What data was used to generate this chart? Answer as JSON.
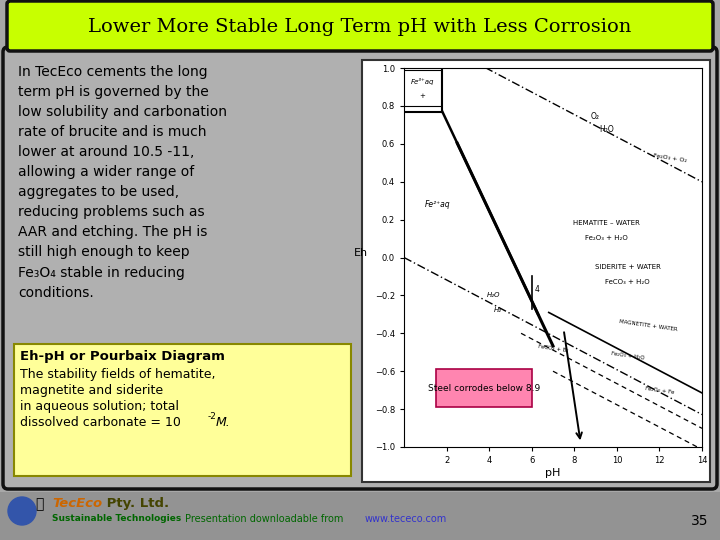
{
  "title": "Lower More Stable Long Term pH with Less Corrosion",
  "title_bg": "#c8ff00",
  "title_color": "#000000",
  "slide_bg": "#a8a8a8",
  "content_bg": "#b0b0b0",
  "left_para": "In TecEco cements the long\nterm pH is governed by the\nlow solubility and carbonation\nrate of brucite and is much\nlower at around 10.5 -11,\nallowing a wider range of\naggregates to be used,\nreducing problems such as\nAAR and etching. The pH is\nstill high enough to keep\nFe₃O₄ stable in reducing\nconditions.",
  "box_title": "Eh-pH or Pourbaix Diagram",
  "box_line1": "The stability fields of hematite,",
  "box_line2": "magnetite and siderite",
  "box_line3": "in aqueous solution; total",
  "box_line4": "dissolved carbonate = 10",
  "box_super": "-2",
  "box_italic": "M.",
  "steel_label": "Steel corrodes below 8.9",
  "steel_color": "#ff85b0",
  "footer_num": "35",
  "footer_green": "#006600",
  "footer_url_color": "#3333cc",
  "footer_orange": "#cc6600",
  "diag_xlabel": "pH",
  "diag_ylabel": "Eh"
}
